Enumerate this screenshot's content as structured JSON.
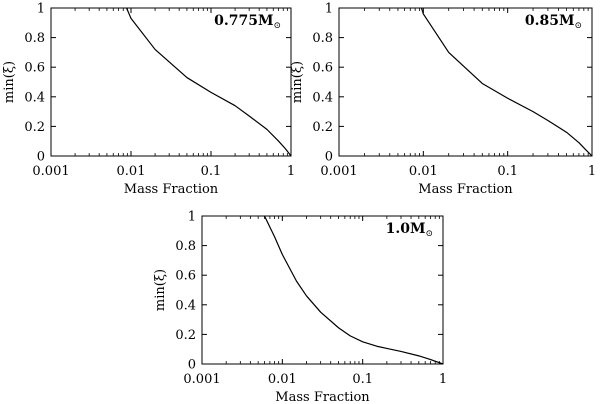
{
  "chart_data": [
    {
      "type": "line",
      "annotation": {
        "value": "0.775",
        "unit": "M",
        "sub": "⊙"
      },
      "xlabel": "Mass Fraction",
      "ylabel": "min(ξ)",
      "xscale": "log",
      "xlim": [
        0.001,
        1
      ],
      "ylim": [
        0,
        1
      ],
      "xticks": [
        "0.001",
        "0.01",
        "0.1",
        "1"
      ],
      "yticks": [
        "0",
        "0.2",
        "0.4",
        "0.6",
        "0.8",
        "1"
      ],
      "grid": false,
      "series": [
        {
          "x": [
            0.0088,
            0.01,
            0.02,
            0.05,
            0.1,
            0.2,
            0.3,
            0.5,
            0.7,
            0.85,
            1.0
          ],
          "y": [
            1.0,
            0.93,
            0.72,
            0.53,
            0.43,
            0.34,
            0.27,
            0.18,
            0.1,
            0.05,
            0.0
          ]
        }
      ]
    },
    {
      "type": "line",
      "annotation": {
        "value": "0.85",
        "unit": "M",
        "sub": "⊙"
      },
      "xlabel": "Mass Fraction",
      "ylabel": "min(ξ)",
      "xscale": "log",
      "xlim": [
        0.001,
        1
      ],
      "ylim": [
        0,
        1
      ],
      "xticks": [
        "0.001",
        "0.01",
        "0.1",
        "1"
      ],
      "yticks": [
        "0",
        "0.2",
        "0.4",
        "0.6",
        "0.8",
        "1"
      ],
      "grid": false,
      "series": [
        {
          "x": [
            0.0095,
            0.01,
            0.02,
            0.05,
            0.1,
            0.2,
            0.3,
            0.5,
            0.7,
            0.85,
            1.0
          ],
          "y": [
            1.0,
            0.96,
            0.7,
            0.49,
            0.39,
            0.3,
            0.24,
            0.16,
            0.09,
            0.04,
            0.0
          ]
        }
      ]
    },
    {
      "type": "line",
      "annotation": {
        "value": "1.0",
        "unit": "M",
        "sub": "⊙"
      },
      "xlabel": "Mass Fraction",
      "ylabel": "min(ξ)",
      "xscale": "log",
      "xlim": [
        0.001,
        1
      ],
      "ylim": [
        0,
        1
      ],
      "xticks": [
        "0.001",
        "0.01",
        "0.1",
        "1"
      ],
      "yticks": [
        "0",
        "0.2",
        "0.4",
        "0.6",
        "0.8",
        "1"
      ],
      "grid": false,
      "series": [
        {
          "x": [
            0.006,
            0.008,
            0.01,
            0.015,
            0.02,
            0.03,
            0.05,
            0.07,
            0.1,
            0.15,
            0.2,
            0.3,
            0.5,
            0.7,
            1.0
          ],
          "y": [
            1.0,
            0.86,
            0.74,
            0.56,
            0.46,
            0.35,
            0.245,
            0.19,
            0.15,
            0.12,
            0.105,
            0.085,
            0.055,
            0.03,
            0.0
          ]
        }
      ]
    }
  ]
}
